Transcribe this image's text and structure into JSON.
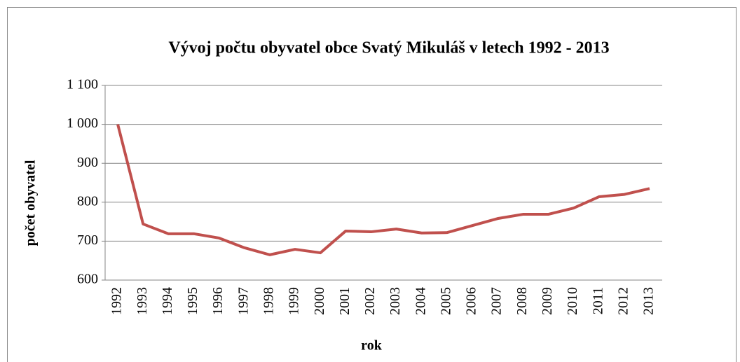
{
  "chart_data": {
    "type": "line",
    "title": "Vývoj počtu obyvatel obce Svatý Mikuláš v letech 1992 - 2013",
    "x_label": "rok",
    "y_label": "počet obyvatel",
    "categories": [
      "1992",
      "1993",
      "1994",
      "1995",
      "1996",
      "1997",
      "1998",
      "1999",
      "2000",
      "2001",
      "2002",
      "2003",
      "2004",
      "2005",
      "2006",
      "2007",
      "2008",
      "2009",
      "2010",
      "2011",
      "2012",
      "2013"
    ],
    "values": [
      1000,
      744,
      719,
      719,
      708,
      683,
      665,
      679,
      670,
      726,
      724,
      731,
      721,
      722,
      740,
      758,
      769,
      769,
      785,
      814,
      820,
      835
    ],
    "color": "#c0504d",
    "ylim": [
      600,
      1100
    ],
    "yticks": [
      600,
      700,
      800,
      900,
      {
        "value": 1000,
        "label": "1 000"
      },
      {
        "value": 1100,
        "label": "1 100"
      }
    ],
    "grid": true
  }
}
